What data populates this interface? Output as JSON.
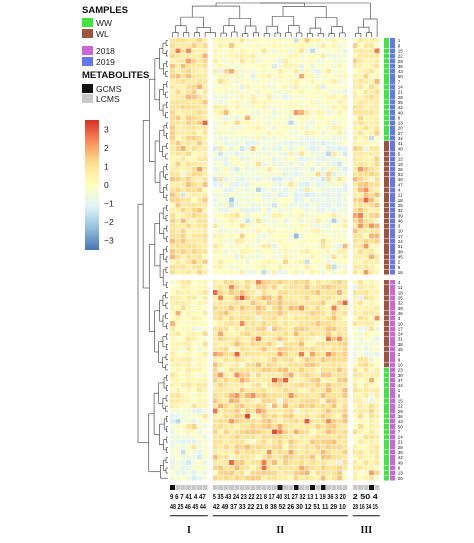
{
  "chart_data": {
    "type": "heatmap",
    "title": "",
    "legend": {
      "samples_title": "SAMPLES",
      "samples": [
        {
          "label": "WW",
          "color": "#3ee63e"
        },
        {
          "label": "WL",
          "color": "#a0523c"
        },
        {
          "label": "2018",
          "color": "#cc66dd"
        },
        {
          "label": "2019",
          "color": "#6677ee"
        }
      ],
      "metabolites_title": "METABOLITES",
      "metabolites": [
        {
          "label": "GCMS",
          "color": "#111111"
        },
        {
          "label": "LCMS",
          "color": "#c8c8c8"
        }
      ]
    },
    "colorbar": {
      "ticks": [
        3,
        2,
        1,
        0,
        -1,
        -2,
        -3
      ],
      "range": [
        -3.5,
        3.5
      ],
      "colors": [
        "#4575b4",
        "#91bfdb",
        "#e0f3f8",
        "#ffffbf",
        "#fee090",
        "#fc8d59",
        "#d73027"
      ]
    },
    "column_groups": [
      {
        "label": "I",
        "cols": 7,
        "top_labels": "9  6  7  41 4  47",
        "bottom_labels": "48 25 46 45 44"
      },
      {
        "label": "II",
        "cols": 25,
        "top_labels": "5  35 43 24 23 22 21 8  17 40 31 27 32 13  1  19 36 3  20",
        "bottom_labels": "42 49 37 33 22 21 8 38 52 26 30 12 51 11 29 10"
      },
      {
        "label": "III",
        "cols": 5,
        "top_labels": "2  50 4  20",
        "bottom_labels": "28 16 34 15"
      }
    ],
    "column_label_rows": [
      "9 6 7 41 4 47",
      "5 35 43 24 23 22 21 8 17 40 31 27 32 13 1 19 36 3 20",
      "2 50 4",
      "48 25 46 45 44",
      "42 49 37 33 22 21 8 38 52 26 30 12 51 11 29 10",
      "28 16 34 15"
    ],
    "column_metabolite_type_counts": {
      "gcms": 6,
      "lcms": 31
    },
    "row_blocks": [
      {
        "rows": 46,
        "year": "2019",
        "treatment_top": "WW",
        "treatment_bottom": "WL"
      },
      {
        "rows": 39,
        "year": "2018",
        "treatment_top": "WL",
        "treatment_bottom": "WW"
      }
    ],
    "grid": true
  }
}
